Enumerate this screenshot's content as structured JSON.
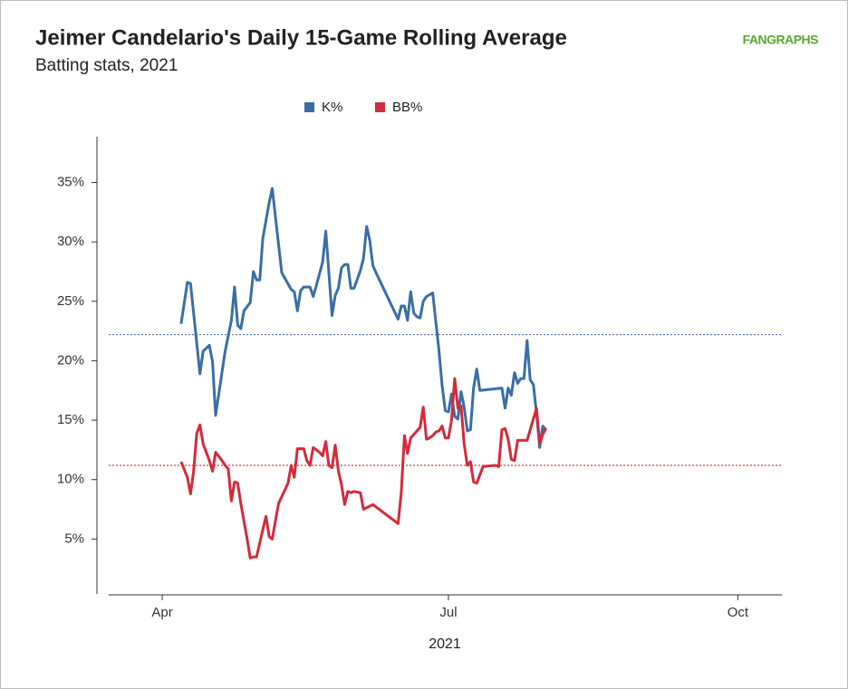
{
  "chart_data": {
    "type": "line",
    "title": "Jeimer Candelario's Daily 15-Game Rolling Average",
    "subtitle": "Batting stats, 2021",
    "brand": "FANGRAPHS",
    "x_label": "2021",
    "xlim": [
      74,
      288
    ],
    "xticks": [
      {
        "value": 91,
        "label": "Apr"
      },
      {
        "value": 182,
        "label": "Jul"
      },
      {
        "value": 274,
        "label": "Oct"
      }
    ],
    "ylim": [
      0,
      39
    ],
    "yticks": [
      {
        "value": 5,
        "label": "5%"
      },
      {
        "value": 10,
        "label": "10%"
      },
      {
        "value": 15,
        "label": "15%"
      },
      {
        "value": 20,
        "label": "20%"
      },
      {
        "value": 25,
        "label": "25%"
      },
      {
        "value": 30,
        "label": "30%"
      },
      {
        "value": 35,
        "label": "35%"
      }
    ],
    "legend": "top",
    "series": [
      {
        "name": "K%",
        "color": "#3a6ea5",
        "average": 22.2,
        "x": [
          97,
          99,
          100,
          103,
          104,
          106,
          107,
          108,
          111,
          113,
          114,
          115,
          116,
          117,
          119,
          120,
          121,
          122,
          123,
          125,
          126,
          129,
          132,
          133,
          134,
          135,
          136,
          138,
          139,
          140,
          142,
          143,
          145,
          146,
          147,
          148,
          149,
          150,
          151,
          152,
          154,
          155,
          156,
          157,
          158,
          159,
          166,
          167,
          168,
          169,
          170,
          171,
          172,
          173,
          174,
          175,
          177,
          179,
          180,
          181,
          182,
          183,
          184,
          185,
          186,
          187,
          188,
          189,
          190,
          191,
          192,
          199,
          200,
          201,
          202,
          203,
          204,
          205,
          206,
          207,
          208,
          209,
          210,
          211,
          212,
          213
        ],
        "values": [
          23.1,
          26.6,
          26.5,
          18.9,
          20.8,
          21.3,
          19.9,
          15.4,
          20.8,
          23.4,
          26.2,
          23.0,
          22.7,
          24.2,
          24.9,
          27.5,
          26.8,
          26.8,
          30.3,
          33.3,
          34.5,
          27.4,
          26.0,
          25.8,
          24.2,
          25.9,
          26.2,
          26.2,
          25.4,
          26.3,
          28.3,
          30.9,
          23.8,
          25.5,
          26.1,
          27.8,
          28.1,
          28.1,
          26.1,
          26.1,
          27.6,
          28.6,
          31.3,
          30.1,
          28.0,
          27.4,
          23.5,
          24.6,
          24.6,
          23.4,
          25.8,
          24.0,
          23.7,
          23.6,
          25.0,
          25.4,
          25.7,
          20.8,
          17.9,
          15.8,
          15.7,
          17.2,
          15.3,
          15.1,
          17.4,
          16.1,
          14.1,
          14.2,
          17.7,
          19.3,
          17.5,
          17.7,
          16.0,
          17.7,
          17.1,
          19.0,
          18.1,
          18.5,
          18.5,
          21.7,
          18.4,
          18.0,
          15.6,
          12.7,
          14.5,
          14.2
        ]
      },
      {
        "name": "BB%",
        "color": "#d22b3b",
        "average": 11.2,
        "x": [
          97,
          99,
          100,
          101,
          102,
          103,
          104,
          106,
          107,
          108,
          110,
          111,
          112,
          113,
          114,
          115,
          116,
          118,
          119,
          120,
          121,
          123,
          124,
          125,
          126,
          128,
          131,
          132,
          133,
          134,
          136,
          137,
          138,
          139,
          141,
          142,
          143,
          144,
          145,
          146,
          147,
          148,
          149,
          150,
          151,
          152,
          154,
          155,
          158,
          166,
          167,
          168,
          169,
          170,
          172,
          173,
          174,
          175,
          176,
          177,
          178,
          179,
          180,
          181,
          182,
          183,
          184,
          185,
          186,
          187,
          188,
          189,
          190,
          191,
          193,
          197,
          198,
          199,
          200,
          201,
          202,
          203,
          204,
          207,
          210,
          211,
          212,
          213
        ],
        "values": [
          11.5,
          10.2,
          8.8,
          10.7,
          13.9,
          14.6,
          13.0,
          11.6,
          10.7,
          12.3,
          11.6,
          11.2,
          10.9,
          8.2,
          9.8,
          9.7,
          8.0,
          5.0,
          3.4,
          3.5,
          3.5,
          5.8,
          6.9,
          5.2,
          5.0,
          8.0,
          9.7,
          11.2,
          10.2,
          12.6,
          12.6,
          11.6,
          11.2,
          12.7,
          12.3,
          12.0,
          13.2,
          11.2,
          11.0,
          12.9,
          10.7,
          9.6,
          7.9,
          9.0,
          8.9,
          9.0,
          8.9,
          7.5,
          7.9,
          6.3,
          8.9,
          13.7,
          12.2,
          13.5,
          14.1,
          14.4,
          16.1,
          13.4,
          13.5,
          13.7,
          14.0,
          14.1,
          14.5,
          13.5,
          13.5,
          15.0,
          18.5,
          16.0,
          16.2,
          13.0,
          11.2,
          11.5,
          9.8,
          9.7,
          11.1,
          11.2,
          11.1,
          14.2,
          14.3,
          13.4,
          11.7,
          11.6,
          13.3,
          13.3,
          16.0,
          13.0,
          13.8,
          14.3
        ]
      }
    ]
  }
}
